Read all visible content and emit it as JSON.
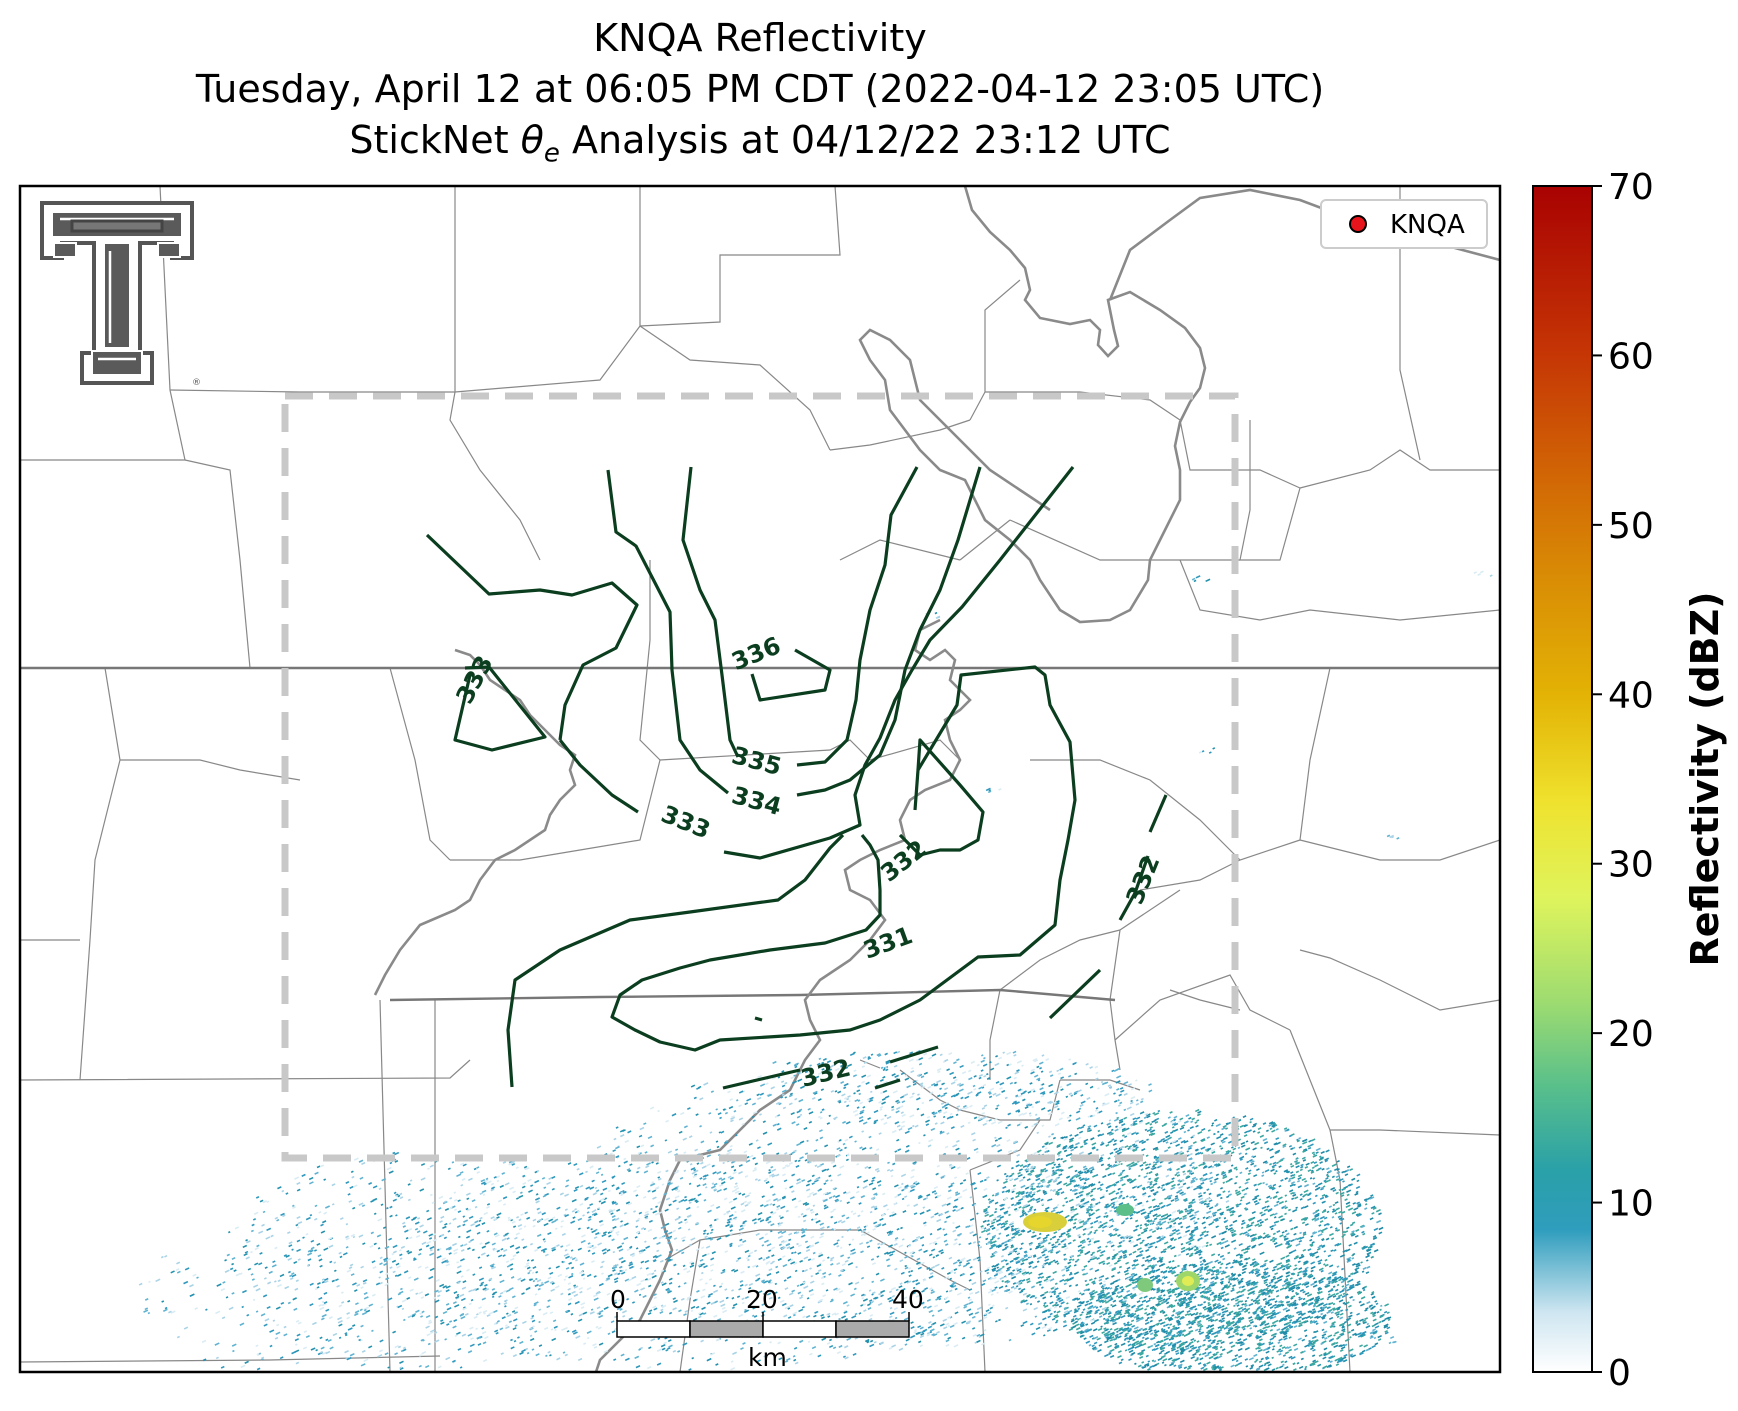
{
  "title": {
    "line1": "KNQA Reflectivity",
    "line2": "Tuesday, April 12 at 06:05 PM CDT (2022-04-12 23:05 UTC)",
    "line3_prefix": "StickNet ",
    "line3_symbol": "θ",
    "line3_sub": "e",
    "line3_suffix": " Analysis at 04/12/22 23:12 UTC"
  },
  "legend": {
    "label": "KNQA",
    "marker_color": "#e8141b"
  },
  "colorbar": {
    "label": "Reflectivity (dBZ)",
    "ticks": [
      "0",
      "10",
      "20",
      "30",
      "40",
      "50",
      "60",
      "70"
    ],
    "min": 0,
    "max": 70
  },
  "scalebar": {
    "ticks": [
      "0",
      "20",
      "40"
    ],
    "unit": "km"
  },
  "contours": {
    "color": "#0b3d1f",
    "labels": [
      "336",
      "335",
      "334",
      "333",
      "333",
      "332",
      "332",
      "332",
      "331"
    ]
  },
  "colors": {
    "analysis_box": "#c8c8c8",
    "river": "#808080",
    "county_lines": "#888888",
    "logo": "#555555"
  },
  "icons": {
    "logo": "texas-tech-double-t-logo"
  }
}
